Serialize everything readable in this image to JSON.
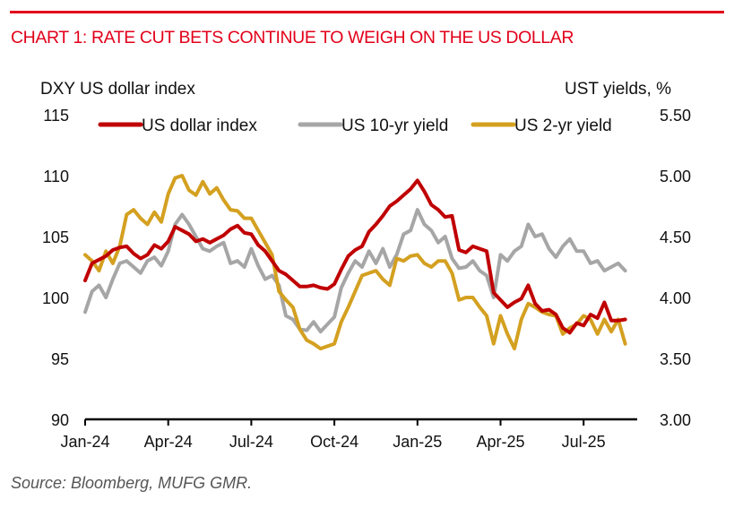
{
  "header": {
    "title": "CHART 1: RATE CUT BETS CONTINUE TO WEIGH ON THE US DOLLAR",
    "accent_color": "#e2001a"
  },
  "footer": {
    "source": "Source: Bloomberg, MUFG GMR."
  },
  "chart_data": {
    "type": "line",
    "title": "CHART 1: RATE CUT BETS CONTINUE TO WEIGH ON THE US DOLLAR",
    "xlabel": "",
    "ylabel": "DXY US dollar index",
    "y2label": "UST yields, %",
    "x_unit": "months since Jan-2024",
    "x_ticks": [
      {
        "value": 0,
        "label": "Jan-24"
      },
      {
        "value": 3,
        "label": "Apr-24"
      },
      {
        "value": 6,
        "label": "Jul-24"
      },
      {
        "value": 9,
        "label": "Oct-24"
      },
      {
        "value": 12,
        "label": "Jan-25"
      },
      {
        "value": 15,
        "label": "Apr-25"
      },
      {
        "value": 18,
        "label": "Jul-25"
      }
    ],
    "xlim": [
      0,
      20
    ],
    "ylim": [
      90,
      115
    ],
    "y_ticks": [
      {
        "value": 90,
        "label": "90"
      },
      {
        "value": 95,
        "label": "95"
      },
      {
        "value": 100,
        "label": "100"
      },
      {
        "value": 105,
        "label": "105"
      },
      {
        "value": 110,
        "label": "110"
      },
      {
        "value": 115,
        "label": "115"
      }
    ],
    "y2lim": [
      3.0,
      5.5
    ],
    "y2_ticks": [
      {
        "value": 3.0,
        "label": "3.00"
      },
      {
        "value": 3.5,
        "label": "3.50"
      },
      {
        "value": 4.0,
        "label": "4.00"
      },
      {
        "value": 4.5,
        "label": "4.50"
      },
      {
        "value": 5.0,
        "label": "5.00"
      },
      {
        "value": 5.5,
        "label": "5.50"
      }
    ],
    "grid": false,
    "legend_position": "top",
    "x": [
      0,
      0.25,
      0.5,
      0.75,
      1,
      1.25,
      1.5,
      1.75,
      2,
      2.25,
      2.5,
      2.75,
      3,
      3.25,
      3.5,
      3.75,
      4,
      4.25,
      4.5,
      4.75,
      5,
      5.25,
      5.5,
      5.75,
      6,
      6.25,
      6.5,
      6.75,
      7,
      7.25,
      7.5,
      7.75,
      8,
      8.25,
      8.5,
      8.75,
      9,
      9.25,
      9.5,
      9.75,
      10,
      10.25,
      10.5,
      10.75,
      11,
      11.25,
      11.5,
      11.75,
      12,
      12.25,
      12.5,
      12.75,
      13,
      13.25,
      13.5,
      13.75,
      14,
      14.25,
      14.5,
      14.75,
      15,
      15.25,
      15.5,
      15.75,
      16,
      16.25,
      16.5,
      16.75,
      17,
      17.25,
      17.5,
      17.75,
      18,
      18.25,
      18.5,
      18.75,
      19,
      19.25,
      19.5
    ],
    "series": [
      {
        "name": "US dollar index",
        "axis": "left",
        "color": "#c00000",
        "values": [
          101.4,
          102.8,
          103.1,
          103.4,
          103.9,
          104.1,
          104.2,
          103.6,
          103.2,
          103.5,
          104.3,
          104.0,
          104.6,
          105.8,
          105.5,
          105.2,
          104.6,
          104.8,
          104.5,
          104.8,
          105.1,
          105.6,
          105.9,
          105.3,
          105.2,
          104.3,
          103.8,
          103.0,
          102.2,
          101.9,
          101.4,
          100.9,
          100.9,
          101.0,
          100.8,
          100.7,
          101.1,
          102.3,
          103.4,
          103.9,
          104.2,
          105.4,
          106.0,
          106.7,
          107.5,
          107.9,
          108.4,
          108.9,
          109.6,
          108.7,
          107.6,
          107.2,
          106.6,
          106.7,
          103.9,
          103.7,
          104.2,
          104.0,
          103.8,
          100.4,
          99.8,
          99.2,
          99.6,
          99.9,
          101.0,
          99.5,
          98.9,
          99.0,
          98.6,
          97.5,
          97.1,
          97.9,
          97.7,
          98.6,
          98.3,
          99.6,
          98.1,
          98.1,
          98.2
        ]
      },
      {
        "name": "US 10-yr yield",
        "axis": "right",
        "color": "#a6a6a6",
        "values": [
          3.88,
          4.05,
          4.1,
          4.0,
          4.15,
          4.28,
          4.3,
          4.25,
          4.2,
          4.3,
          4.33,
          4.26,
          4.38,
          4.6,
          4.68,
          4.6,
          4.5,
          4.4,
          4.38,
          4.42,
          4.45,
          4.28,
          4.3,
          4.25,
          4.4,
          4.26,
          4.15,
          4.18,
          4.1,
          3.85,
          3.82,
          3.74,
          3.73,
          3.8,
          3.72,
          3.78,
          3.84,
          4.08,
          4.2,
          4.3,
          4.25,
          4.38,
          4.28,
          4.4,
          4.25,
          4.35,
          4.52,
          4.55,
          4.72,
          4.6,
          4.55,
          4.45,
          4.5,
          4.32,
          4.24,
          4.25,
          4.3,
          4.22,
          4.18,
          4.0,
          4.35,
          4.3,
          4.38,
          4.42,
          4.6,
          4.5,
          4.52,
          4.4,
          4.33,
          4.42,
          4.48,
          4.38,
          4.38,
          4.28,
          4.3,
          4.22,
          4.25,
          4.28,
          4.22
        ]
      },
      {
        "name": "US 2-yr yield",
        "axis": "right",
        "color": "#d4a020",
        "values": [
          4.35,
          4.3,
          4.22,
          4.38,
          4.28,
          4.42,
          4.68,
          4.72,
          4.65,
          4.6,
          4.7,
          4.62,
          4.85,
          4.98,
          5.0,
          4.88,
          4.84,
          4.95,
          4.85,
          4.9,
          4.8,
          4.72,
          4.71,
          4.65,
          4.65,
          4.55,
          4.45,
          4.35,
          4.05,
          3.98,
          3.92,
          3.74,
          3.65,
          3.62,
          3.58,
          3.6,
          3.62,
          3.8,
          3.92,
          4.05,
          4.18,
          4.2,
          4.22,
          4.15,
          4.1,
          4.32,
          4.3,
          4.34,
          4.35,
          4.28,
          4.25,
          4.3,
          4.3,
          4.2,
          3.98,
          4.0,
          4.0,
          3.92,
          3.85,
          3.62,
          3.85,
          3.7,
          3.58,
          3.82,
          3.95,
          3.92,
          3.88,
          3.86,
          3.85,
          3.7,
          3.75,
          3.78,
          3.85,
          3.82,
          3.7,
          3.82,
          3.72,
          3.82,
          3.62
        ]
      }
    ]
  }
}
